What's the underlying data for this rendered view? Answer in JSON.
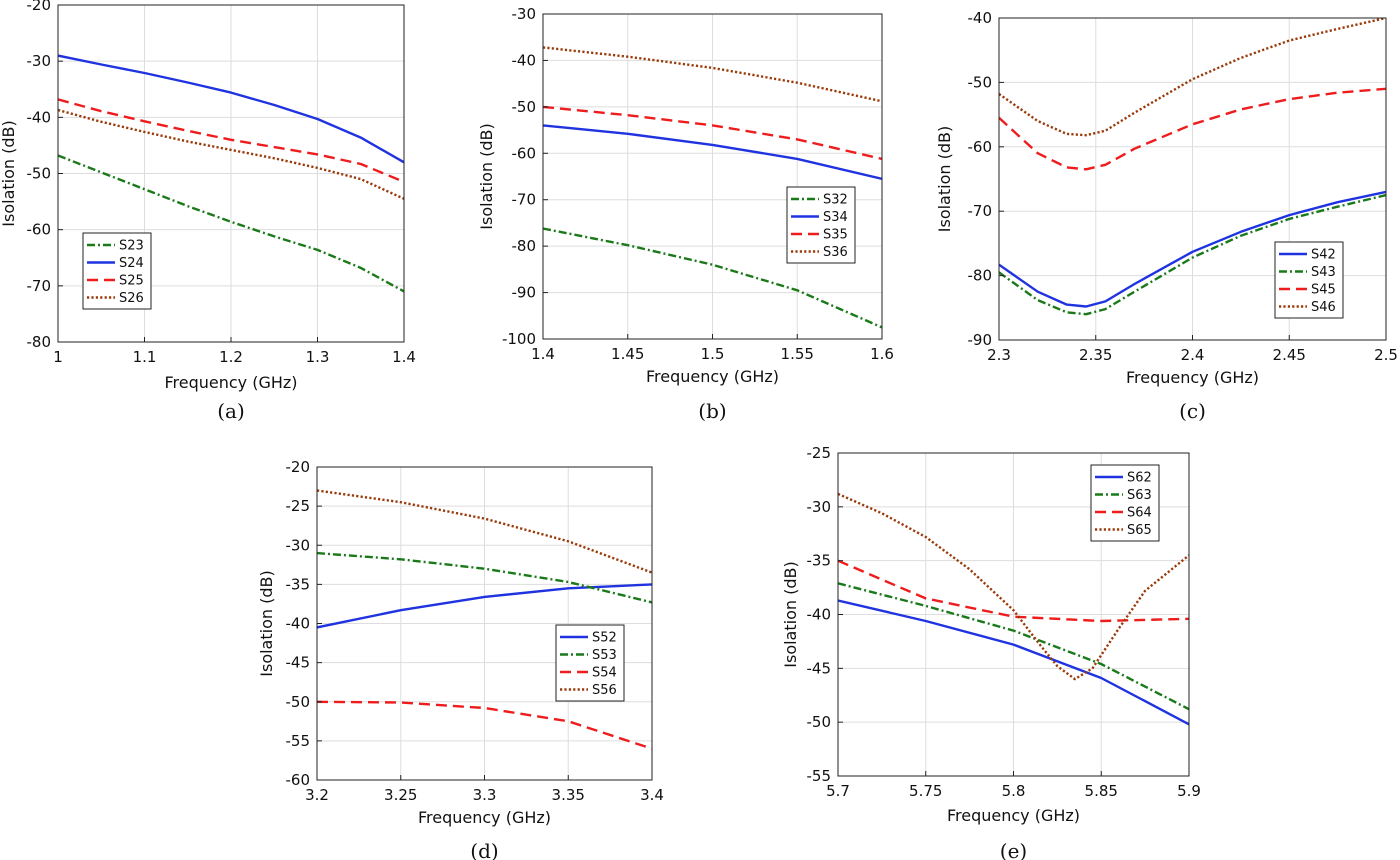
{
  "figure": {
    "panel_labels": [
      "(a)",
      "(b)",
      "(c)",
      "(d)",
      "(e)"
    ]
  },
  "chart_data": [
    {
      "id": "a",
      "type": "line",
      "panel_label": "(a)",
      "xlabel": "Frequency (GHz)",
      "ylabel": "Isolation (dB)",
      "xlim": [
        1,
        1.4
      ],
      "ylim": [
        -80,
        -20
      ],
      "xticks": [
        1,
        1.1,
        1.2,
        1.3,
        1.4
      ],
      "xtick_labels": [
        "1",
        "1.1",
        "1.2",
        "1.3",
        "1.4"
      ],
      "yticks": [
        -20,
        -30,
        -40,
        -50,
        -60,
        -70,
        -80
      ],
      "ytick_labels": [
        "-20",
        "-30",
        "-40",
        "-50",
        "-60",
        "-70",
        "-80"
      ],
      "grid": true,
      "legend_position": "bottom-left",
      "series": [
        {
          "name": "S23",
          "color": "#1a7a1a",
          "style": "dashdot",
          "x": [
            1,
            1.05,
            1.1,
            1.15,
            1.2,
            1.25,
            1.3,
            1.35,
            1.4
          ],
          "y": [
            -46.8,
            -49.8,
            -52.8,
            -55.8,
            -58.6,
            -61.2,
            -63.6,
            -66.8,
            -71
          ]
        },
        {
          "name": "S24",
          "color": "#1f33e0",
          "style": "solid",
          "x": [
            1,
            1.05,
            1.1,
            1.15,
            1.2,
            1.25,
            1.3,
            1.35,
            1.4
          ],
          "y": [
            -29,
            -30.6,
            -32.1,
            -33.8,
            -35.6,
            -37.8,
            -40.3,
            -43.6,
            -48
          ]
        },
        {
          "name": "S25",
          "color": "#ee1c1c",
          "style": "dashed",
          "x": [
            1,
            1.05,
            1.1,
            1.15,
            1.2,
            1.25,
            1.3,
            1.35,
            1.4
          ],
          "y": [
            -36.8,
            -38.9,
            -40.7,
            -42.4,
            -44,
            -45.3,
            -46.6,
            -48.3,
            -51.5
          ]
        },
        {
          "name": "S26",
          "color": "#9a3a0a",
          "style": "dotted",
          "x": [
            1,
            1.05,
            1.1,
            1.15,
            1.2,
            1.25,
            1.3,
            1.35,
            1.4
          ],
          "y": [
            -38.7,
            -40.8,
            -42.6,
            -44.3,
            -45.8,
            -47.3,
            -49,
            -51,
            -54.5
          ]
        }
      ]
    },
    {
      "id": "b",
      "type": "line",
      "panel_label": "(b)",
      "xlabel": "Frequency (GHz)",
      "ylabel": "Isolation (dB)",
      "xlim": [
        1.4,
        1.6
      ],
      "ylim": [
        -100,
        -30
      ],
      "xticks": [
        1.4,
        1.45,
        1.5,
        1.55,
        1.6
      ],
      "xtick_labels": [
        "1.4",
        "1.45",
        "1.5",
        "1.55",
        "1.6"
      ],
      "yticks": [
        -30,
        -40,
        -50,
        -60,
        -70,
        -80,
        -90,
        -100
      ],
      "ytick_labels": [
        "-30",
        "-40",
        "-50",
        "-60",
        "-70",
        "-80",
        "-90",
        "-100"
      ],
      "grid": true,
      "legend_position": "right",
      "series": [
        {
          "name": "S32",
          "color": "#1a7a1a",
          "style": "dashdot",
          "x": [
            1.4,
            1.45,
            1.5,
            1.55,
            1.6
          ],
          "y": [
            -76.2,
            -79.8,
            -84,
            -89.5,
            -97.5
          ]
        },
        {
          "name": "S34",
          "color": "#1f33e0",
          "style": "solid",
          "x": [
            1.4,
            1.45,
            1.5,
            1.55,
            1.6
          ],
          "y": [
            -54,
            -55.8,
            -58.2,
            -61.2,
            -65.5
          ]
        },
        {
          "name": "S35",
          "color": "#ee1c1c",
          "style": "dashed",
          "x": [
            1.4,
            1.45,
            1.5,
            1.55,
            1.6
          ],
          "y": [
            -50,
            -51.8,
            -54,
            -57,
            -61.2
          ]
        },
        {
          "name": "S36",
          "color": "#9a3a0a",
          "style": "dotted",
          "x": [
            1.4,
            1.45,
            1.5,
            1.55,
            1.6
          ],
          "y": [
            -37.2,
            -39.2,
            -41.6,
            -44.8,
            -48.8
          ]
        }
      ]
    },
    {
      "id": "c",
      "type": "line",
      "panel_label": "(c)",
      "xlabel": "Frequency (GHz)",
      "ylabel": "Isolation (dB)",
      "xlim": [
        2.3,
        2.5
      ],
      "ylim": [
        -90,
        -40
      ],
      "xticks": [
        2.3,
        2.35,
        2.4,
        2.45,
        2.5
      ],
      "xtick_labels": [
        "2.3",
        "2.35",
        "2.4",
        "2.45",
        "2.5"
      ],
      "yticks": [
        -40,
        -50,
        -60,
        -70,
        -80,
        -90
      ],
      "ytick_labels": [
        "-40",
        "-50",
        "-60",
        "-70",
        "-80",
        "-90"
      ],
      "grid": true,
      "legend_position": "bottom-right",
      "series": [
        {
          "name": "S42",
          "color": "#1f33e0",
          "style": "solid",
          "x": [
            2.3,
            2.32,
            2.335,
            2.345,
            2.355,
            2.37,
            2.4,
            2.425,
            2.45,
            2.475,
            2.5
          ],
          "y": [
            -78.3,
            -82.5,
            -84.5,
            -84.8,
            -84,
            -81.3,
            -76.3,
            -73.2,
            -70.6,
            -68.6,
            -67
          ]
        },
        {
          "name": "S43",
          "color": "#1a7a1a",
          "style": "dashdot",
          "x": [
            2.3,
            2.32,
            2.335,
            2.345,
            2.355,
            2.37,
            2.4,
            2.425,
            2.45,
            2.475,
            2.5
          ],
          "y": [
            -79.5,
            -83.8,
            -85.7,
            -86,
            -85.2,
            -82.5,
            -77.2,
            -73.8,
            -71.2,
            -69.3,
            -67.5
          ]
        },
        {
          "name": "S45",
          "color": "#ee1c1c",
          "style": "dashed",
          "x": [
            2.3,
            2.32,
            2.335,
            2.345,
            2.355,
            2.37,
            2.4,
            2.425,
            2.45,
            2.475,
            2.5
          ],
          "y": [
            -55.5,
            -61,
            -63.2,
            -63.5,
            -62.8,
            -60.3,
            -56.5,
            -54.2,
            -52.6,
            -51.6,
            -51
          ]
        },
        {
          "name": "S46",
          "color": "#9a3a0a",
          "style": "dotted",
          "x": [
            2.3,
            2.32,
            2.335,
            2.345,
            2.355,
            2.37,
            2.4,
            2.425,
            2.45,
            2.475,
            2.5
          ],
          "y": [
            -51.8,
            -56,
            -58,
            -58.2,
            -57.5,
            -54.7,
            -49.5,
            -46.2,
            -43.5,
            -41.7,
            -40
          ]
        }
      ]
    },
    {
      "id": "d",
      "type": "line",
      "panel_label": "(d)",
      "xlabel": "Frequency (GHz)",
      "ylabel": "Isolation (dB)",
      "xlim": [
        3.2,
        3.4
      ],
      "ylim": [
        -60,
        -20
      ],
      "xticks": [
        3.2,
        3.25,
        3.3,
        3.35,
        3.4
      ],
      "xtick_labels": [
        "3.2",
        "3.25",
        "3.3",
        "3.35",
        "3.4"
      ],
      "yticks": [
        -20,
        -25,
        -30,
        -35,
        -40,
        -45,
        -50,
        -55,
        -60
      ],
      "ytick_labels": [
        "-20",
        "-25",
        "-30",
        "-35",
        "-40",
        "-45",
        "-50",
        "-55",
        "-60"
      ],
      "grid": true,
      "legend_position": "right",
      "series": [
        {
          "name": "S52",
          "color": "#1f33e0",
          "style": "solid",
          "x": [
            3.2,
            3.25,
            3.3,
            3.35,
            3.4
          ],
          "y": [
            -40.5,
            -38.3,
            -36.6,
            -35.5,
            -35
          ]
        },
        {
          "name": "S53",
          "color": "#1a7a1a",
          "style": "dashdot",
          "x": [
            3.2,
            3.25,
            3.3,
            3.35,
            3.4
          ],
          "y": [
            -31,
            -31.8,
            -33,
            -34.7,
            -37.3
          ]
        },
        {
          "name": "S54",
          "color": "#ee1c1c",
          "style": "dashed",
          "x": [
            3.2,
            3.25,
            3.3,
            3.35,
            3.4
          ],
          "y": [
            -50,
            -50.1,
            -50.8,
            -52.5,
            -56
          ]
        },
        {
          "name": "S56",
          "color": "#9a3a0a",
          "style": "dotted",
          "x": [
            3.2,
            3.25,
            3.3,
            3.35,
            3.4
          ],
          "y": [
            -23,
            -24.5,
            -26.6,
            -29.5,
            -33.5
          ]
        }
      ]
    },
    {
      "id": "e",
      "type": "line",
      "panel_label": "(e)",
      "xlabel": "Frequency (GHz)",
      "ylabel": "Isolation (dB)",
      "xlim": [
        5.7,
        5.9
      ],
      "ylim": [
        -55,
        -25
      ],
      "xticks": [
        5.7,
        5.75,
        5.8,
        5.85,
        5.9
      ],
      "xtick_labels": [
        "5.7",
        "5.75",
        "5.8",
        "5.85",
        "5.9"
      ],
      "yticks": [
        -25,
        -30,
        -35,
        -40,
        -45,
        -50,
        -55
      ],
      "ytick_labels": [
        "-25",
        "-30",
        "-35",
        "-40",
        "-45",
        "-50",
        "-55"
      ],
      "grid": true,
      "legend_position": "top-right",
      "series": [
        {
          "name": "S62",
          "color": "#1f33e0",
          "style": "solid",
          "x": [
            5.7,
            5.75,
            5.8,
            5.85,
            5.9
          ],
          "y": [
            -38.7,
            -40.6,
            -42.8,
            -45.9,
            -50.2
          ]
        },
        {
          "name": "S63",
          "color": "#1a7a1a",
          "style": "dashdot",
          "x": [
            5.7,
            5.75,
            5.8,
            5.85,
            5.9
          ],
          "y": [
            -37.1,
            -39.2,
            -41.5,
            -44.6,
            -48.8
          ]
        },
        {
          "name": "S64",
          "color": "#ee1c1c",
          "style": "dashed",
          "x": [
            5.7,
            5.75,
            5.8,
            5.85,
            5.9
          ],
          "y": [
            -35,
            -38.5,
            -40.2,
            -40.6,
            -40.4
          ]
        },
        {
          "name": "S65",
          "color": "#9a3a0a",
          "style": "dotted",
          "x": [
            5.7,
            5.725,
            5.75,
            5.775,
            5.8,
            5.815,
            5.825,
            5.835,
            5.845,
            5.86,
            5.875,
            5.9
          ],
          "y": [
            -28.8,
            -30.6,
            -32.8,
            -35.8,
            -39.6,
            -42.8,
            -44.8,
            -46,
            -45,
            -41.3,
            -37.8,
            -34.5
          ]
        }
      ]
    }
  ]
}
